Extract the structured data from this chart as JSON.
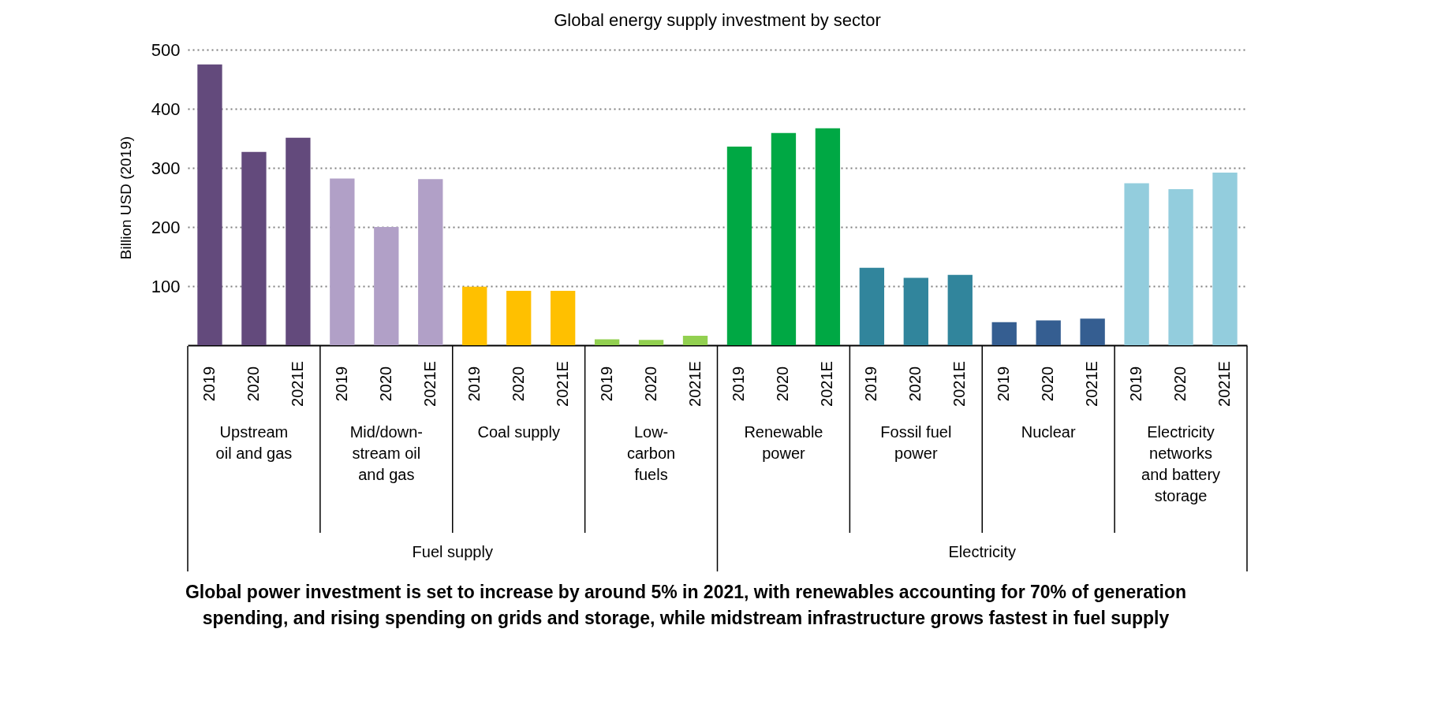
{
  "chart_data": {
    "type": "bar",
    "title": "Global energy supply investment by sector",
    "ylabel": "Billion USD (2019)",
    "categories": [
      "Upstream oil and gas",
      "Mid/down-stream oil and gas",
      "Coal supply",
      "Low-carbon fuels",
      "Renewable power",
      "Fossil fuel power",
      "Nuclear",
      "Electricity networks and battery storage"
    ],
    "series": [
      {
        "name": "2019",
        "colors": [
          "#634a7c",
          "#b1a0c7",
          "#ffc000",
          "#92d050",
          "#00a844",
          "#31859c",
          "#355e91",
          "#93cddd"
        ],
        "values": [
          475,
          282,
          99,
          10,
          336,
          131,
          39,
          274
        ]
      },
      {
        "name": "2020",
        "colors": [
          "#634a7c",
          "#b1a0c7",
          "#ffc000",
          "#92d050",
          "#00a844",
          "#31859c",
          "#355e91",
          "#93cddd"
        ],
        "values": [
          327,
          200,
          92,
          9,
          359,
          114,
          42,
          264
        ]
      },
      {
        "name": "2021E",
        "colors": [
          "#634a7c",
          "#b1a0c7",
          "#ffc000",
          "#92d050",
          "#00a844",
          "#31859c",
          "#355e91",
          "#93cddd"
        ],
        "values": [
          351,
          281,
          92,
          16,
          367,
          119,
          45,
          292
        ]
      }
    ],
    "ylim": [
      0,
      500
    ],
    "yticks": [
      100,
      200,
      300,
      400,
      500
    ],
    "grid": "y",
    "annotations": [
      "Fuel supply",
      "Electricity",
      "Global power investment is set to increase by around 5% in 2021, with renewables accounting for 70% of generation spending, and rising spending on grids and storage, while midstream infrastructure grows fastest in fuel supply"
    ]
  }
}
